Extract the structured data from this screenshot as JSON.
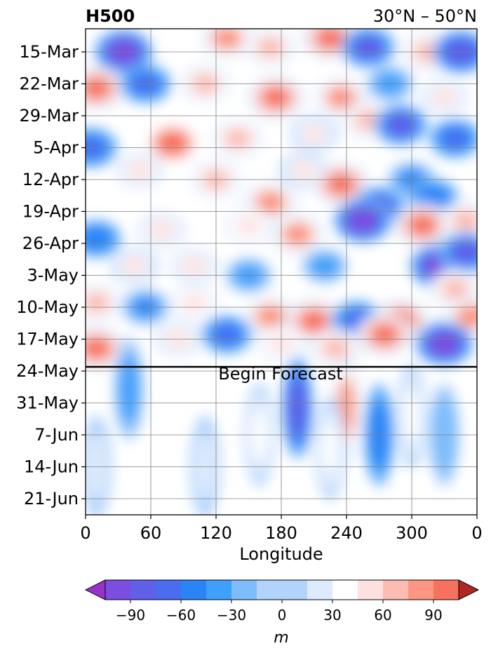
{
  "chart_data": {
    "type": "heatmap",
    "title_left": "H500",
    "title_right": "30°N – 50°N",
    "xlabel": "Longitude",
    "x_ticks": [
      "0",
      "60",
      "120",
      "180",
      "240",
      "300",
      "0"
    ],
    "x_tick_values": [
      0,
      60,
      120,
      180,
      240,
      300,
      360
    ],
    "xlim": [
      0,
      360
    ],
    "y_ticks": [
      "15-Mar",
      "22-Mar",
      "29-Mar",
      "5-Apr",
      "12-Apr",
      "19-Apr",
      "26-Apr",
      "3-May",
      "10-May",
      "17-May",
      "24-May",
      "31-May",
      "7-Jun",
      "14-Jun",
      "21-Jun"
    ],
    "y_axis_inverted": true,
    "grid": true,
    "annotation": {
      "text": "Begin Forecast",
      "date": "24-May"
    },
    "colorbar": {
      "label": "m",
      "tick_labels": [
        "−90",
        "−60",
        "−30",
        "0",
        "30",
        "60",
        "90"
      ],
      "tick_values": [
        -90,
        -60,
        -30,
        0,
        30,
        60,
        90
      ],
      "levels": [
        -105,
        -90,
        -75,
        -60,
        -45,
        -30,
        -15,
        15,
        30,
        45,
        60,
        75,
        90,
        105
      ],
      "extend": "both",
      "colors": [
        "#9932cc",
        "#7b4ee0",
        "#5f5fe8",
        "#4a6df0",
        "#2a84f5",
        "#3fa0fb",
        "#7ebcfb",
        "#b2d4fb",
        "#deebfd",
        "#ffffff",
        "#fde0e0",
        "#fbbcb4",
        "#fa9682",
        "#f6725e",
        "#ec5444",
        "#d8433a",
        "#c73630",
        "#b12822"
      ]
    },
    "blobs": [
      {
        "lon": 35,
        "date": "15-Mar",
        "value": -100
      },
      {
        "lon": 130,
        "date": "12-Mar",
        "value": 75
      },
      {
        "lon": 170,
        "date": "14-Mar",
        "value": 60
      },
      {
        "lon": 225,
        "date": "12-Mar",
        "value": 90
      },
      {
        "lon": 260,
        "date": "14-Mar",
        "value": -80
      },
      {
        "lon": 315,
        "date": "15-Mar",
        "value": 70
      },
      {
        "lon": 345,
        "date": "15-Mar",
        "value": -90
      },
      {
        "lon": 10,
        "date": "23-Mar",
        "value": 90
      },
      {
        "lon": 55,
        "date": "22-Mar",
        "value": -70
      },
      {
        "lon": 110,
        "date": "22-Mar",
        "value": 60
      },
      {
        "lon": 175,
        "date": "25-Mar",
        "value": 90
      },
      {
        "lon": 235,
        "date": "25-Mar",
        "value": 75
      },
      {
        "lon": 280,
        "date": "22-Mar",
        "value": -45
      },
      {
        "lon": 330,
        "date": "25-Mar",
        "value": 50
      },
      {
        "lon": 5,
        "date": "5-Apr",
        "value": -75
      },
      {
        "lon": 80,
        "date": "4-Apr",
        "value": 100
      },
      {
        "lon": 140,
        "date": "3-Apr",
        "value": 60
      },
      {
        "lon": 210,
        "date": "2-Apr",
        "value": 45
      },
      {
        "lon": 260,
        "date": "30-Mar",
        "value": 60
      },
      {
        "lon": 290,
        "date": "31-Mar",
        "value": -80
      },
      {
        "lon": 340,
        "date": "3-Apr",
        "value": -70
      },
      {
        "lon": 50,
        "date": "10-Apr",
        "value": 50
      },
      {
        "lon": 120,
        "date": "12-Apr",
        "value": 60
      },
      {
        "lon": 170,
        "date": "17-Apr",
        "value": 80
      },
      {
        "lon": 200,
        "date": "10-Apr",
        "value": 45
      },
      {
        "lon": 235,
        "date": "13-Apr",
        "value": 90
      },
      {
        "lon": 270,
        "date": "18-Apr",
        "value": -80
      },
      {
        "lon": 300,
        "date": "12-Apr",
        "value": -50
      },
      {
        "lon": 320,
        "date": "16-Apr",
        "value": -60
      },
      {
        "lon": 10,
        "date": "25-Apr",
        "value": -60
      },
      {
        "lon": 70,
        "date": "23-Apr",
        "value": 50
      },
      {
        "lon": 150,
        "date": "22-Apr",
        "value": 55
      },
      {
        "lon": 195,
        "date": "24-Apr",
        "value": 80
      },
      {
        "lon": 255,
        "date": "21-Apr",
        "value": -100
      },
      {
        "lon": 310,
        "date": "22-Apr",
        "value": 90
      },
      {
        "lon": 350,
        "date": "21-Apr",
        "value": 70
      },
      {
        "lon": 45,
        "date": "1-May",
        "value": 45
      },
      {
        "lon": 100,
        "date": "1-May",
        "value": 50
      },
      {
        "lon": 150,
        "date": "3-May",
        "value": -45
      },
      {
        "lon": 220,
        "date": "1-May",
        "value": -40
      },
      {
        "lon": 325,
        "date": "1-May",
        "value": -100
      },
      {
        "lon": 350,
        "date": "28-Apr",
        "value": -80
      },
      {
        "lon": 10,
        "date": "9-May",
        "value": 60
      },
      {
        "lon": 55,
        "date": "10-May",
        "value": -50
      },
      {
        "lon": 100,
        "date": "9-May",
        "value": 55
      },
      {
        "lon": 170,
        "date": "12-May",
        "value": 75
      },
      {
        "lon": 210,
        "date": "13-May",
        "value": 90
      },
      {
        "lon": 250,
        "date": "13-May",
        "value": -75
      },
      {
        "lon": 290,
        "date": "13-May",
        "value": 90
      },
      {
        "lon": 340,
        "date": "6-May",
        "value": 65
      },
      {
        "lon": 355,
        "date": "12-May",
        "value": 80
      },
      {
        "lon": 10,
        "date": "19-May",
        "value": 90
      },
      {
        "lon": 85,
        "date": "17-May",
        "value": 50
      },
      {
        "lon": 130,
        "date": "16-May",
        "value": -65
      },
      {
        "lon": 180,
        "date": "18-May",
        "value": 55
      },
      {
        "lon": 230,
        "date": "19-May",
        "value": 65
      },
      {
        "lon": 275,
        "date": "16-May",
        "value": 90
      },
      {
        "lon": 330,
        "date": "18-May",
        "value": -100
      },
      {
        "lon": 195,
        "date": "1-Jun",
        "value": -90
      },
      {
        "lon": 240,
        "date": "1-Jun",
        "value": 75
      },
      {
        "lon": 270,
        "date": "7-Jun",
        "value": -60
      },
      {
        "lon": 160,
        "date": "7-Jun",
        "value": 30
      },
      {
        "lon": 40,
        "date": "28-May",
        "value": -45
      },
      {
        "lon": 225,
        "date": "10-Jun",
        "value": 30
      },
      {
        "lon": 300,
        "date": "3-Jun",
        "value": 30
      },
      {
        "lon": 330,
        "date": "7-Jun",
        "value": -30
      },
      {
        "lon": 10,
        "date": "14-Jun",
        "value": 20
      },
      {
        "lon": 110,
        "date": "14-Jun",
        "value": 20
      }
    ]
  }
}
